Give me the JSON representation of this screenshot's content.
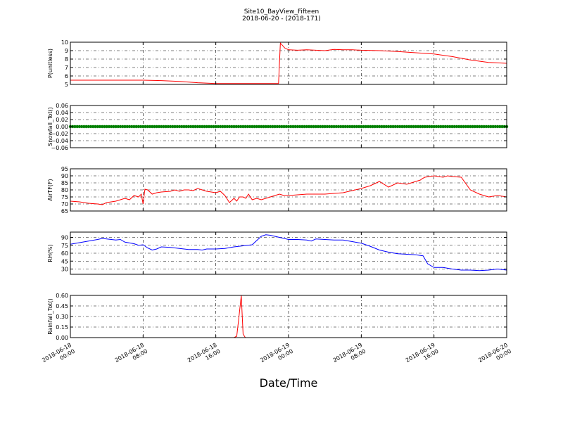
{
  "figure": {
    "title": "Site10_BayView_Fifteen",
    "subtitle": "2018-06-20 - (2018-171)",
    "xlabel": "Date/Time"
  },
  "chart_data": [
    {
      "type": "line",
      "ylabel": "P(unitless)",
      "ylim": [
        5,
        10
      ],
      "yticks": [
        5,
        6,
        7,
        8,
        9,
        10
      ],
      "ytick_labels": [
        "5",
        "6",
        "7",
        "8",
        "9",
        "10"
      ],
      "xlim": [
        0,
        48
      ],
      "grid": true,
      "series": [
        {
          "color": "#ff0000",
          "x": [
            0,
            4,
            8,
            10,
            12,
            14,
            16,
            18,
            20,
            22,
            22.9,
            23.1,
            23.6,
            24,
            25,
            26,
            27,
            28,
            29,
            30,
            31,
            32,
            34,
            36,
            38,
            40,
            42,
            44,
            46,
            47,
            48
          ],
          "y": [
            5.5,
            5.5,
            5.5,
            5.45,
            5.35,
            5.2,
            5.1,
            5.1,
            5.1,
            5.1,
            5.1,
            9.9,
            9.3,
            9.1,
            9.05,
            9.1,
            9.05,
            9.0,
            9.15,
            9.1,
            9.1,
            9.05,
            9.0,
            8.9,
            8.75,
            8.6,
            8.3,
            7.9,
            7.6,
            7.55,
            7.5
          ]
        }
      ]
    },
    {
      "type": "scatter",
      "ylabel": "Snowfall_Tot()",
      "ylim": [
        -0.06,
        0.06
      ],
      "yticks": [
        -0.06,
        -0.04,
        -0.02,
        0.0,
        0.02,
        0.04,
        0.06
      ],
      "ytick_labels": [
        "−0.06",
        "−0.04",
        "−0.02",
        "0.00",
        "0.02",
        "0.04",
        "0.06"
      ],
      "xlim": [
        0,
        48
      ],
      "grid": true,
      "series": [
        {
          "color": "#008000",
          "x_start": 0,
          "x_end": 48,
          "x_step": 0.25,
          "y": 0.0
        }
      ]
    },
    {
      "type": "line",
      "ylabel": "AirTF(F)",
      "ylim": [
        65,
        95
      ],
      "yticks": [
        65,
        70,
        75,
        80,
        85,
        90,
        95
      ],
      "ytick_labels": [
        "65",
        "70",
        "75",
        "80",
        "85",
        "90",
        "95"
      ],
      "xlim": [
        0,
        48
      ],
      "grid": true,
      "series": [
        {
          "color": "#ff0000",
          "x": [
            0,
            1,
            2,
            3,
            3.5,
            4,
            5,
            6,
            6.5,
            7,
            7.5,
            7.8,
            8.0,
            8.2,
            8.5,
            9,
            9.5,
            10,
            11,
            11.5,
            12,
            12.5,
            13,
            13.5,
            14,
            14.5,
            15,
            16,
            16.5,
            17,
            17.5,
            18,
            18.3,
            18.6,
            19,
            19.3,
            19.6,
            20,
            20.5,
            21,
            21.5,
            22,
            22.5,
            23,
            23.5,
            24,
            25,
            26,
            27,
            28,
            29,
            30,
            31,
            32,
            33,
            34,
            35,
            36,
            37,
            38,
            38.5,
            38.7,
            39,
            40,
            41,
            41.5,
            42,
            43,
            44,
            45,
            46,
            47,
            48
          ],
          "y": [
            72,
            71.5,
            70.5,
            70,
            69.5,
            71,
            72,
            74,
            73,
            76,
            75,
            77,
            70,
            80.5,
            80,
            77,
            78,
            78.5,
            79,
            80,
            79,
            80,
            80,
            79.5,
            81,
            80,
            79,
            78,
            79,
            76,
            71,
            74,
            72,
            75,
            75,
            74,
            77,
            73,
            74,
            73,
            74,
            75,
            76,
            77,
            76,
            76,
            76.5,
            77,
            77,
            77,
            77.5,
            78,
            79.5,
            81,
            83,
            86,
            82,
            85,
            84,
            86,
            87,
            88,
            89,
            90,
            89,
            90,
            89.5,
            89,
            80,
            77,
            75,
            76,
            75
          ]
        }
      ]
    },
    {
      "type": "line",
      "ylabel": "RH(%)",
      "ylim": [
        20,
        100
      ],
      "yticks": [
        30,
        45,
        60,
        75,
        90
      ],
      "ytick_labels": [
        "30",
        "45",
        "60",
        "75",
        "90"
      ],
      "xlim": [
        0,
        48
      ],
      "grid": true,
      "series": [
        {
          "color": "#0000ff",
          "x": [
            0,
            1,
            2,
            3,
            3.5,
            4,
            5,
            5.5,
            6,
            7,
            7.5,
            8,
            8.5,
            9,
            9.5,
            10,
            11,
            12,
            13,
            14,
            14.5,
            15,
            16,
            17,
            18,
            18.5,
            19,
            19.5,
            20,
            21,
            21.5,
            22,
            23,
            24,
            25,
            26,
            26.5,
            27,
            28,
            29,
            30,
            31,
            32,
            33,
            34,
            35,
            36,
            37,
            38,
            38.8,
            39.3,
            40,
            41,
            42,
            43,
            44,
            45,
            46,
            47,
            48
          ],
          "y": [
            77,
            80,
            83,
            86,
            88,
            87,
            85,
            86,
            81,
            78,
            75,
            76,
            70,
            66,
            68,
            72,
            71,
            69,
            67,
            67,
            66,
            68,
            68,
            69,
            72,
            73,
            74,
            75,
            76,
            92,
            95,
            94,
            90,
            86,
            86,
            85,
            83,
            87,
            86,
            85,
            85,
            82,
            79,
            73,
            66,
            62,
            59,
            58,
            57,
            55,
            40,
            33,
            33,
            30,
            28,
            28,
            27,
            28,
            30,
            28
          ]
        }
      ]
    },
    {
      "type": "line",
      "ylabel": "Rainfall_Tot()",
      "ylim": [
        0,
        0.6
      ],
      "yticks": [
        0.0,
        0.15,
        0.3,
        0.45,
        0.6
      ],
      "ytick_labels": [
        "0.00",
        "0.15",
        "0.30",
        "0.45",
        "0.60"
      ],
      "xlim": [
        0,
        48
      ],
      "grid": true,
      "series": [
        {
          "color": "#ff0000",
          "x": [
            0,
            18,
            18.3,
            18.55,
            18.8,
            19.0,
            19.25,
            19.5,
            48
          ],
          "y": [
            0,
            0,
            0.02,
            0.3,
            0.6,
            0.05,
            0,
            0,
            0
          ]
        }
      ]
    }
  ],
  "x_tick_labels": [
    {
      "line1": "2018-06-18",
      "line2": "00:00"
    },
    {
      "line1": "2018-06-18",
      "line2": "08:00"
    },
    {
      "line1": "2018-06-18",
      "line2": "16:00"
    },
    {
      "line1": "2018-06-19",
      "line2": "00:00"
    },
    {
      "line1": "2018-06-19",
      "line2": "08:00"
    },
    {
      "line1": "2018-06-19",
      "line2": "16:00"
    },
    {
      "line1": "2018-06-20",
      "line2": "00:00"
    }
  ],
  "x_ticks": [
    0,
    8,
    16,
    24,
    32,
    40,
    48
  ]
}
